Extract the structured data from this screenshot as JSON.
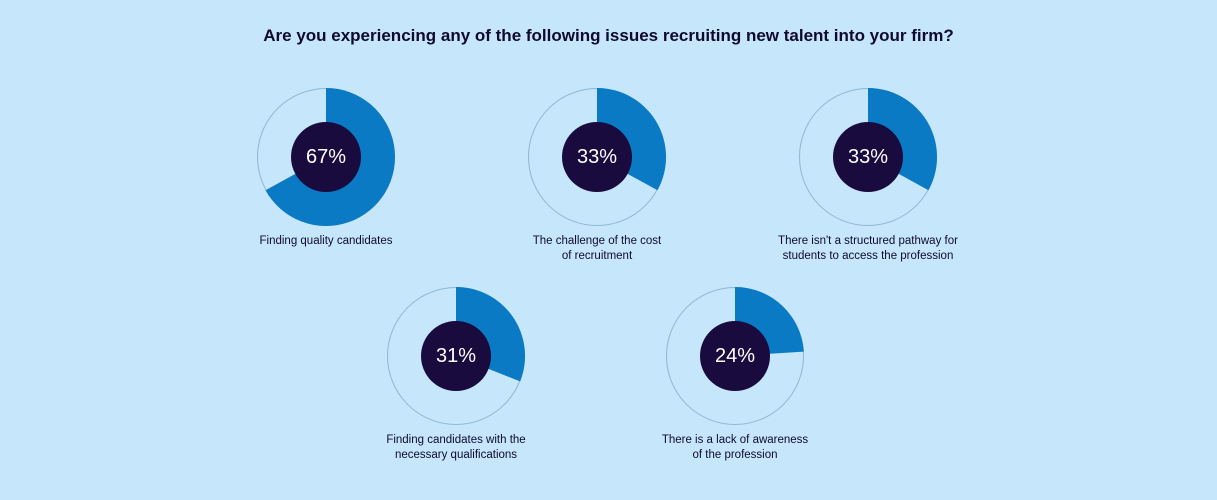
{
  "title": "Are you experiencing any of the following issues recruiting new talent into your firm?",
  "colors": {
    "background": "#c5e6fb",
    "segment": "#0a7ac4",
    "remainder": "#c5e6fb",
    "ring_outline": "#8fb7d3",
    "center": "#1a0b3e",
    "text": "#0f0a2e"
  },
  "chart_data": {
    "type": "pie",
    "title": "Are you experiencing any of the following issues recruiting new talent into your firm?",
    "items": [
      {
        "label": "67%",
        "value": 67,
        "caption_lines": [
          "Finding quality candidates"
        ]
      },
      {
        "label": "33%",
        "value": 33,
        "caption_lines": [
          "The challenge of the cost",
          "of recruitment"
        ]
      },
      {
        "label": "33%",
        "value": 33,
        "caption_lines": [
          "There isn't a structured pathway for",
          "students to access the profession"
        ]
      },
      {
        "label": "31%",
        "value": 31,
        "caption_lines": [
          "Finding candidates with the",
          "necessary qualifications"
        ]
      },
      {
        "label": "24%",
        "value": 24,
        "caption_lines": [
          "There is a lack of awareness",
          "of the profession"
        ]
      }
    ]
  }
}
